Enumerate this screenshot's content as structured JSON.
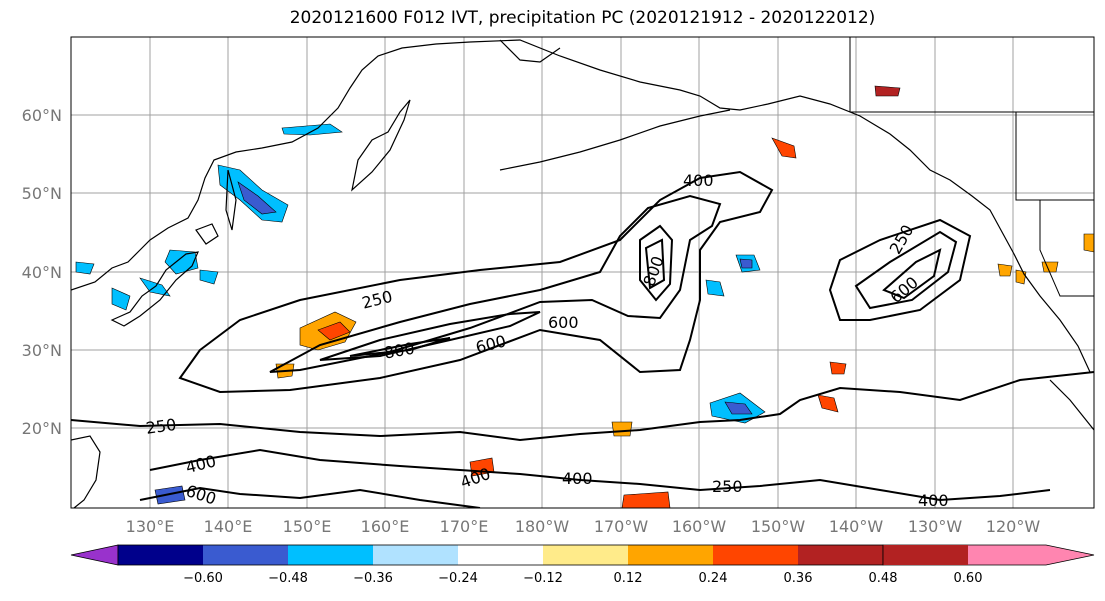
{
  "title": "2020121600 F012 IVT, precipitation PC (2020121912 - 2020122012)",
  "map": {
    "lon_ticks": [
      "130°E",
      "140°E",
      "150°E",
      "160°E",
      "170°E",
      "180°W",
      "170°W",
      "160°W",
      "150°W",
      "140°W",
      "130°W",
      "120°W"
    ],
    "lat_ticks": [
      "20°N",
      "30°N",
      "40°N",
      "50°N",
      "60°N"
    ],
    "grid": true,
    "ivt_contour_labels": [
      "250",
      "400",
      "600",
      "800"
    ]
  },
  "colorbar": {
    "colors": [
      "#9932CC",
      "#00008B",
      "#3A5BD0",
      "#00BFFF",
      "#B0E2FF",
      "#FFFFFF",
      "#FFEB8A",
      "#FFA500",
      "#FF4500",
      "#B22222",
      "#FF85B0"
    ],
    "tick_labels": [
      "−0.60",
      "−0.48",
      "−0.36",
      "−0.24",
      "−0.12",
      "0.12",
      "0.24",
      "0.36",
      "0.48",
      "0.60"
    ]
  }
}
